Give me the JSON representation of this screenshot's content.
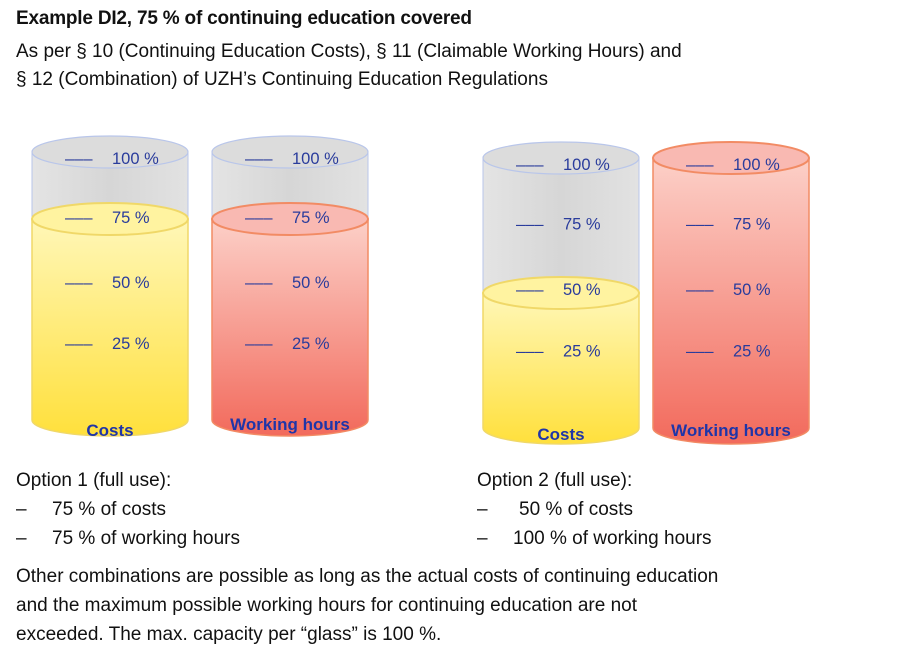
{
  "header": {
    "title": "Example DI2, 75 % of continuing education covered",
    "subtitle_line1": "As per § 10 (Continuing Education Costs), § 11 (Claimable Working Hours) and",
    "subtitle_line2": "§ 12 (Combination) of UZH’s Continuing Education Regulations"
  },
  "colors": {
    "empty": "#dcdcdc",
    "costs_fill": "#fff3a0",
    "hours_fill": "#f7a3a0",
    "hours_rim": "#f28b64",
    "label": "#1f35a8"
  },
  "tick_labels": [
    "100 %",
    "75 %",
    "50 %",
    "25 %"
  ],
  "tick_mark": "–––",
  "chart_data": [
    {
      "type": "cylinder-gauge",
      "option": 1,
      "name": "Costs",
      "fill_percent": 75
    },
    {
      "type": "cylinder-gauge",
      "option": 1,
      "name": "Working hours",
      "fill_percent": 75
    },
    {
      "type": "cylinder-gauge",
      "option": 2,
      "name": "Costs",
      "fill_percent": 50
    },
    {
      "type": "cylinder-gauge",
      "option": 2,
      "name": "Working hours",
      "fill_percent": 100
    }
  ],
  "option1": {
    "heading": "Option 1 (full use):",
    "items": [
      "75 % of costs",
      "75 % of working hours"
    ]
  },
  "option2": {
    "heading": "Option 2 (full use):",
    "items": [
      "50 % of costs",
      "100 % of working hours"
    ]
  },
  "bullet": "–",
  "note": {
    "line1": "Other combinations are possible as long as the actual costs of continuing education",
    "line2": "and the maximum possible working hours for continuing education are not",
    "line3": "exceeded. The max. capacity per “glass” is 100 %."
  }
}
